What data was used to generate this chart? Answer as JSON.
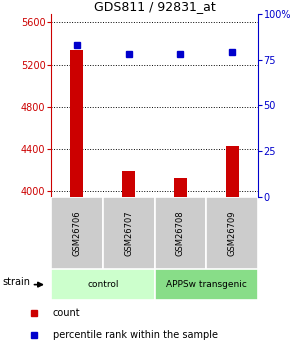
{
  "title": "GDS811 / 92831_at",
  "samples": [
    "GSM26706",
    "GSM26707",
    "GSM26708",
    "GSM26709"
  ],
  "counts": [
    5340,
    4190,
    4130,
    4430
  ],
  "percentiles": [
    83,
    78,
    78,
    79
  ],
  "ylim_left": [
    3950,
    5680
  ],
  "ylim_right": [
    0,
    100
  ],
  "yticks_left": [
    4000,
    4400,
    4800,
    5200,
    5600
  ],
  "yticks_right": [
    0,
    25,
    50,
    75,
    100
  ],
  "bar_color": "#cc0000",
  "dot_color": "#0000cc",
  "groups": [
    {
      "label": "control",
      "samples": [
        0,
        1
      ],
      "color": "#ccffcc"
    },
    {
      "label": "APPSw transgenic",
      "samples": [
        2,
        3
      ],
      "color": "#88dd88"
    }
  ],
  "strain_label": "strain",
  "legend_count_label": "count",
  "legend_pct_label": "percentile rank within the sample",
  "bar_width": 0.25,
  "left_axis_color": "#cc0000",
  "right_axis_color": "#0000cc",
  "bg_color": "#ffffff"
}
